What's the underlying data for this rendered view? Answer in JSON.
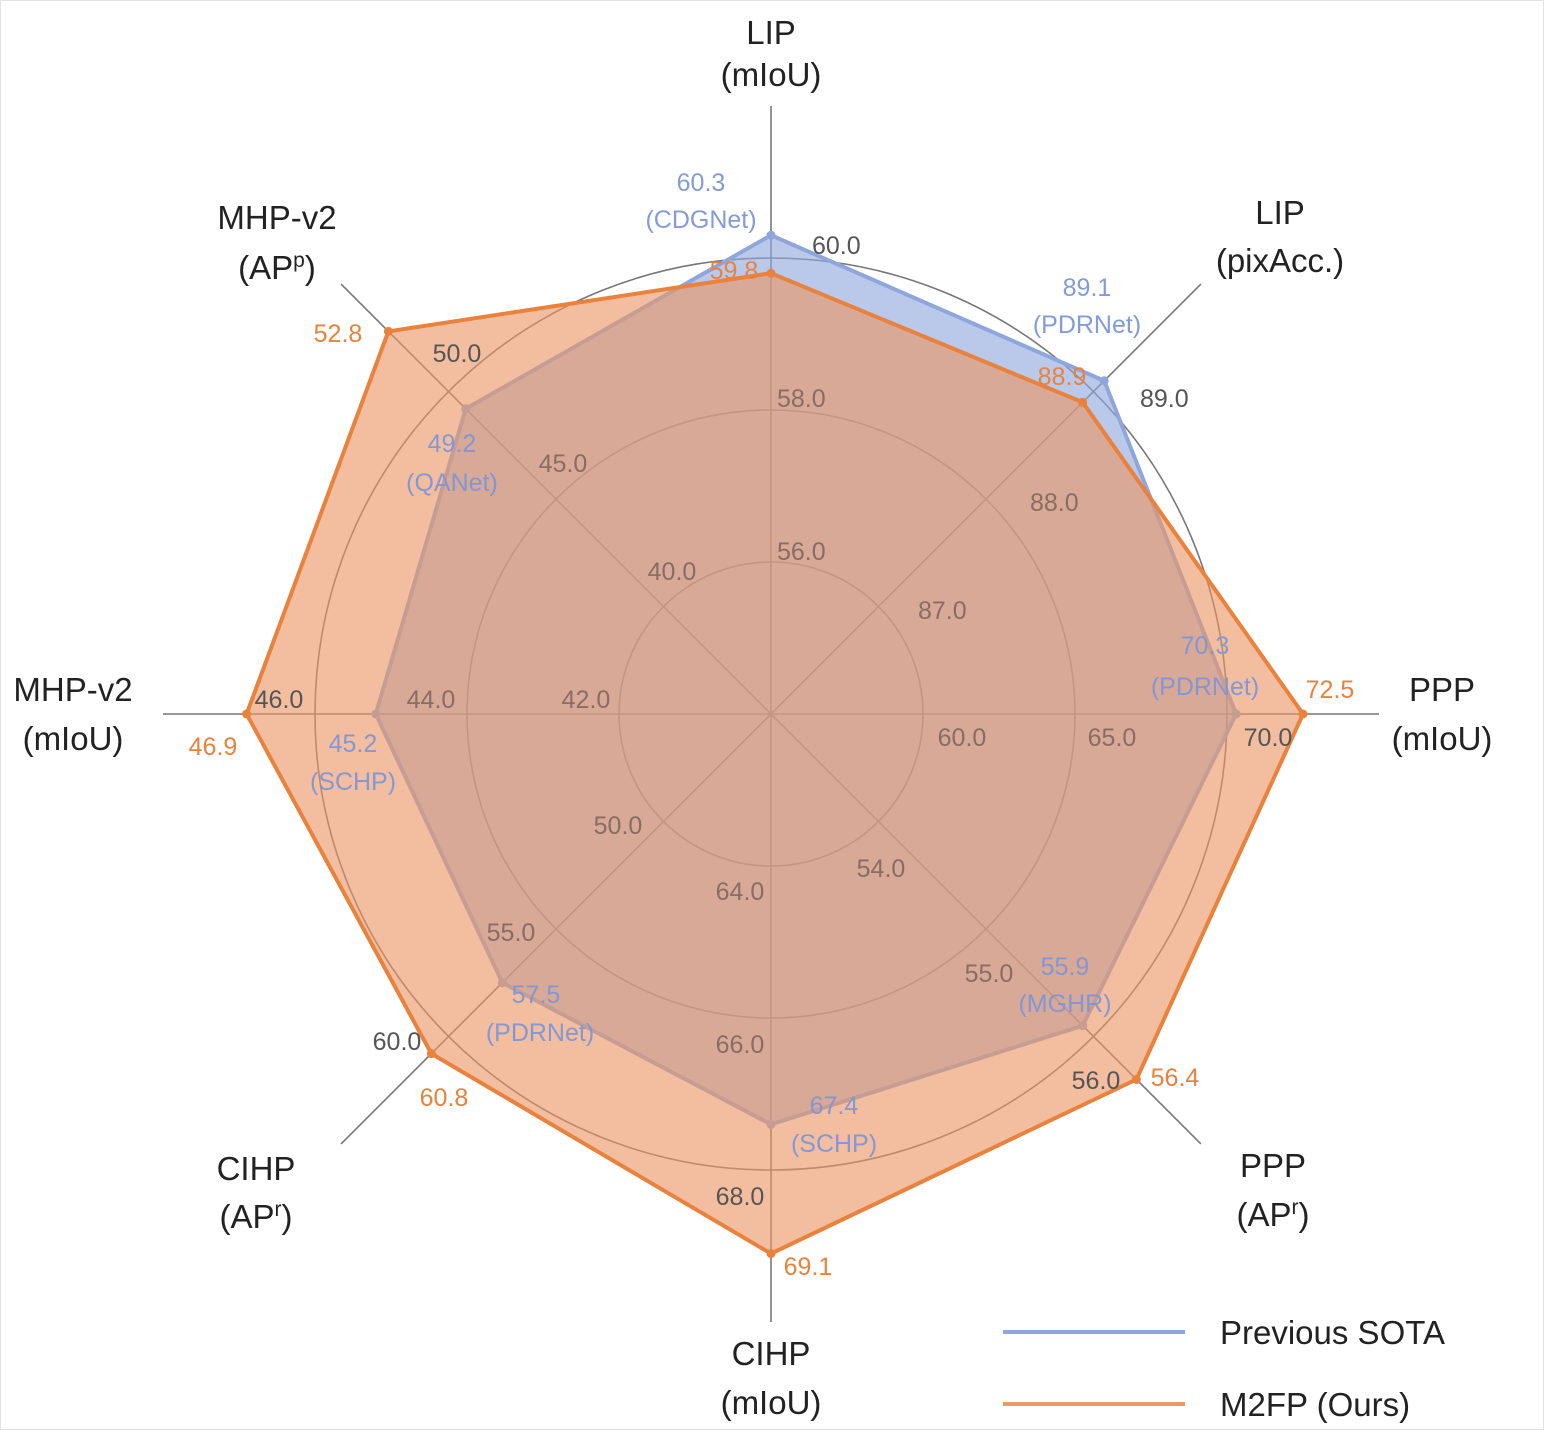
{
  "chart_data": {
    "type": "radar",
    "axes": [
      {
        "label_lines": [
          "LIP",
          "(mIoU)"
        ],
        "ticks": [
          "56.0",
          "58.0",
          "60.0"
        ]
      },
      {
        "label_lines": [
          "LIP",
          "(pixAcc.)"
        ],
        "ticks": [
          "87.0",
          "88.0",
          "89.0"
        ]
      },
      {
        "label_lines": [
          "PPP",
          "(mIoU)"
        ],
        "ticks": [
          "60.0",
          "65.0",
          "70.0"
        ]
      },
      {
        "label_lines": [
          "PPP",
          "(AP",
          "r",
          ")"
        ],
        "ticks": [
          "54.0",
          "55.0",
          "56.0"
        ]
      },
      {
        "label_lines": [
          "CIHP",
          "(mIoU)"
        ],
        "ticks": [
          "64.0",
          "66.0",
          "68.0"
        ]
      },
      {
        "label_lines": [
          "CIHP",
          "(AP",
          "r",
          ")"
        ],
        "ticks": [
          "50.0",
          "55.0",
          "60.0"
        ]
      },
      {
        "label_lines": [
          "MHP-v2",
          "(mIoU)"
        ],
        "ticks": [
          "42.0",
          "44.0",
          "46.0"
        ]
      },
      {
        "label_lines": [
          "MHP-v2",
          "(AP",
          "p",
          ")"
        ],
        "ticks": [
          "40.0",
          "45.0",
          "50.0"
        ]
      }
    ],
    "series": [
      {
        "name": "Previous SOTA",
        "color": "#8fa6dc",
        "values": [
          60.3,
          89.1,
          70.3,
          55.9,
          67.4,
          57.5,
          45.2,
          49.2
        ],
        "value_labels": [
          "60.3",
          "89.1",
          "70.3",
          "55.9",
          "67.4",
          "57.5",
          "45.2",
          "49.2"
        ],
        "method_labels": [
          "(CDGNet)",
          "(PDRNet)",
          "(PDRNet)",
          "(MGHR)",
          "(SCHP)",
          "(PDRNet)",
          "(SCHP)",
          "(QANet)"
        ]
      },
      {
        "name": "M2FP (Ours)",
        "color": "#e8823d",
        "values": [
          59.8,
          88.9,
          72.5,
          56.4,
          69.1,
          60.8,
          46.9,
          52.8
        ],
        "value_labels": [
          "59.8",
          "88.9",
          "72.5",
          "56.4",
          "69.1",
          "60.8",
          "46.9",
          "52.8"
        ]
      }
    ],
    "legend": {
      "placement": "bottom-right",
      "items": [
        "Previous SOTA",
        "M2FP (Ours)"
      ]
    },
    "grid": true
  }
}
